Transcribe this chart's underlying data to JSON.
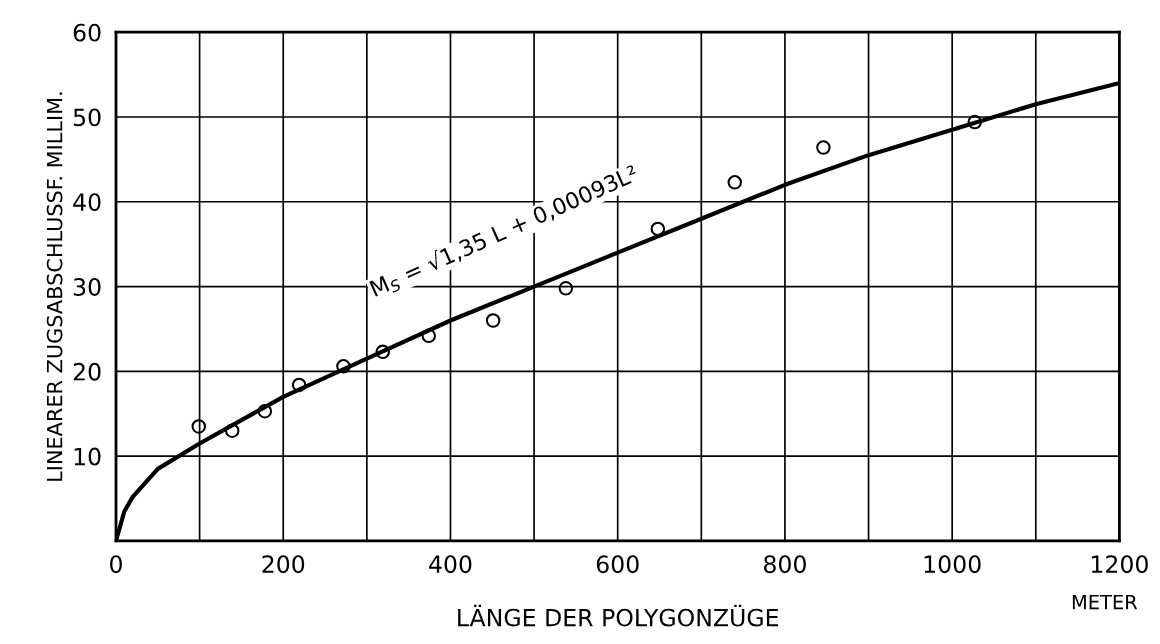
{
  "chart_data": {
    "type": "scatter",
    "xlabel": "LÄNGE DER POLYGONZÜGE",
    "ylabel": "LINEARER ZUGSABSCHLUSSF. MILLIM.",
    "xlim": [
      0,
      1200
    ],
    "ylim": [
      0,
      60
    ],
    "xticks": [
      0,
      {
        "value": 100,
        "label": null
      },
      200,
      {
        "value": 300,
        "label": null
      },
      400,
      {
        "value": 500,
        "label": null
      },
      600,
      {
        "value": 700,
        "label": null
      },
      800,
      {
        "value": 900,
        "label": null
      },
      1000,
      {
        "value": 1100,
        "label": null
      },
      1200
    ],
    "yticks": [
      {
        "value": 0,
        "label": null
      },
      10,
      20,
      30,
      40,
      50,
      60
    ],
    "grid": true,
    "marker": "circle",
    "annotations": [
      "M$_{S}$ = √1,35 L + 0,00093L²",
      "METER"
    ],
    "series": [
      {
        "color": "#000000",
        "x": [
          99,
          139,
          178,
          219,
          272,
          319,
          374,
          451,
          538,
          648,
          740,
          846,
          1027
        ],
        "values": [
          13.5,
          13.0,
          15.3,
          18.4,
          20.6,
          22.3,
          24.2,
          26.0,
          29.8,
          36.8,
          42.3,
          46.4,
          49.4
        ]
      },
      {
        "type": "line",
        "color": "#000000",
        "marker": "none",
        "x": [
          0,
          10,
          20,
          50,
          100,
          200,
          300,
          400,
          500,
          600,
          700,
          800,
          900,
          1000,
          1100,
          1200
        ],
        "values": [
          0,
          3.5,
          5.2,
          8.5,
          11.5,
          17,
          21.5,
          26,
          30,
          34,
          38,
          42,
          45.5,
          48.5,
          51.5,
          54
        ]
      }
    ]
  }
}
